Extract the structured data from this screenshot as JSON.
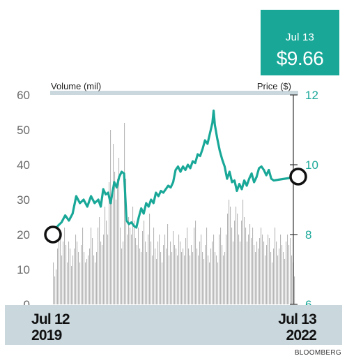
{
  "callout": {
    "date": "Jul 13",
    "price": "$9.66"
  },
  "source": "BLOOMBERG",
  "chart_data": {
    "type": "bar+line",
    "left_axis_label": "Volume (mil)",
    "right_axis_label": "Price ($)",
    "left_ticks": [
      "60",
      "50",
      "40",
      "30",
      "20",
      "10",
      "0"
    ],
    "right_ticks": [
      "12",
      "10",
      "8",
      "6"
    ],
    "ylim_volume": [
      0,
      60
    ],
    "ylim_price": [
      6,
      12
    ],
    "start_label": [
      "Jul 12",
      "2019"
    ],
    "end_label": [
      "Jul 13",
      "2022"
    ],
    "start_price": 8.0,
    "end_price": 9.66,
    "colors": {
      "price_line": "#19a898",
      "volume_bars": "#b6b6b6",
      "footer": "#cad8de",
      "callout": "#19a898"
    },
    "volume": [
      12,
      8,
      10,
      16,
      18,
      20,
      14,
      18,
      22,
      17,
      12,
      18,
      16,
      11,
      14,
      16,
      20,
      18,
      15,
      12,
      17,
      22,
      15,
      12,
      13,
      14,
      16,
      22,
      19,
      14,
      12,
      15,
      22,
      25,
      18,
      17,
      20,
      28,
      24,
      20,
      35,
      50,
      32,
      46,
      38,
      30,
      36,
      42,
      22,
      16,
      18,
      52,
      36,
      20,
      25,
      22,
      20,
      28,
      24,
      19,
      17,
      22,
      16,
      15,
      21,
      24,
      18,
      15,
      20,
      26,
      18,
      14,
      22,
      16,
      13,
      18,
      20,
      15,
      12,
      17,
      20,
      16,
      23,
      14,
      18,
      15,
      21,
      17,
      16,
      14,
      20,
      18,
      15,
      16,
      14,
      19,
      22,
      16,
      14,
      17,
      15,
      22,
      24,
      16,
      14,
      18,
      20,
      15,
      13,
      17,
      22,
      14,
      12,
      16,
      18,
      20,
      15,
      14,
      12,
      20,
      22,
      17,
      14,
      15,
      20,
      26,
      30,
      28,
      22,
      18,
      24,
      28,
      26,
      20,
      18,
      24,
      30,
      25,
      22,
      18,
      20,
      23,
      19,
      22,
      17,
      15,
      18,
      16,
      19,
      22,
      20,
      18,
      14,
      17,
      20,
      19,
      15,
      12,
      16,
      22,
      18,
      14,
      16,
      20,
      17,
      15,
      13,
      18,
      20,
      17,
      19,
      14,
      12,
      8
    ],
    "price": [
      {
        "x": 0.0,
        "y": 8.0
      },
      {
        "x": 0.02,
        "y": 8.25
      },
      {
        "x": 0.035,
        "y": 8.35
      },
      {
        "x": 0.05,
        "y": 8.55
      },
      {
        "x": 0.065,
        "y": 8.4
      },
      {
        "x": 0.08,
        "y": 8.6
      },
      {
        "x": 0.095,
        "y": 9.1
      },
      {
        "x": 0.11,
        "y": 8.9
      },
      {
        "x": 0.125,
        "y": 9.0
      },
      {
        "x": 0.14,
        "y": 8.8
      },
      {
        "x": 0.155,
        "y": 9.1
      },
      {
        "x": 0.17,
        "y": 8.9
      },
      {
        "x": 0.185,
        "y": 9.0
      },
      {
        "x": 0.195,
        "y": 8.8
      },
      {
        "x": 0.205,
        "y": 9.3
      },
      {
        "x": 0.215,
        "y": 9.15
      },
      {
        "x": 0.225,
        "y": 9.2
      },
      {
        "x": 0.235,
        "y": 8.9
      },
      {
        "x": 0.25,
        "y": 9.5
      },
      {
        "x": 0.26,
        "y": 9.35
      },
      {
        "x": 0.27,
        "y": 9.65
      },
      {
        "x": 0.28,
        "y": 9.8
      },
      {
        "x": 0.29,
        "y": 9.75
      },
      {
        "x": 0.3,
        "y": 8.4
      },
      {
        "x": 0.31,
        "y": 8.3
      },
      {
        "x": 0.32,
        "y": 8.35
      },
      {
        "x": 0.33,
        "y": 8.25
      },
      {
        "x": 0.34,
        "y": 8.2
      },
      {
        "x": 0.35,
        "y": 8.5
      },
      {
        "x": 0.36,
        "y": 8.75
      },
      {
        "x": 0.37,
        "y": 8.6
      },
      {
        "x": 0.38,
        "y": 8.9
      },
      {
        "x": 0.39,
        "y": 8.8
      },
      {
        "x": 0.4,
        "y": 9.0
      },
      {
        "x": 0.41,
        "y": 8.9
      },
      {
        "x": 0.42,
        "y": 9.2
      },
      {
        "x": 0.43,
        "y": 9.1
      },
      {
        "x": 0.44,
        "y": 9.25
      },
      {
        "x": 0.45,
        "y": 9.2
      },
      {
        "x": 0.46,
        "y": 9.3
      },
      {
        "x": 0.47,
        "y": 9.4
      },
      {
        "x": 0.48,
        "y": 9.35
      },
      {
        "x": 0.49,
        "y": 9.5
      },
      {
        "x": 0.5,
        "y": 9.85
      },
      {
        "x": 0.51,
        "y": 9.95
      },
      {
        "x": 0.52,
        "y": 9.8
      },
      {
        "x": 0.53,
        "y": 9.95
      },
      {
        "x": 0.54,
        "y": 9.85
      },
      {
        "x": 0.55,
        "y": 10.0
      },
      {
        "x": 0.56,
        "y": 9.9
      },
      {
        "x": 0.57,
        "y": 10.1
      },
      {
        "x": 0.58,
        "y": 10.05
      },
      {
        "x": 0.59,
        "y": 10.3
      },
      {
        "x": 0.6,
        "y": 10.25
      },
      {
        "x": 0.61,
        "y": 10.45
      },
      {
        "x": 0.62,
        "y": 10.7
      },
      {
        "x": 0.63,
        "y": 10.6
      },
      {
        "x": 0.64,
        "y": 10.9
      },
      {
        "x": 0.65,
        "y": 11.2
      },
      {
        "x": 0.655,
        "y": 11.55
      },
      {
        "x": 0.66,
        "y": 11.15
      },
      {
        "x": 0.67,
        "y": 10.75
      },
      {
        "x": 0.68,
        "y": 10.4
      },
      {
        "x": 0.69,
        "y": 10.15
      },
      {
        "x": 0.7,
        "y": 9.95
      },
      {
        "x": 0.71,
        "y": 9.6
      },
      {
        "x": 0.72,
        "y": 9.8
      },
      {
        "x": 0.73,
        "y": 9.5
      },
      {
        "x": 0.74,
        "y": 9.55
      },
      {
        "x": 0.75,
        "y": 9.25
      },
      {
        "x": 0.76,
        "y": 9.45
      },
      {
        "x": 0.77,
        "y": 9.3
      },
      {
        "x": 0.78,
        "y": 9.55
      },
      {
        "x": 0.79,
        "y": 9.4
      },
      {
        "x": 0.8,
        "y": 9.6
      },
      {
        "x": 0.81,
        "y": 9.75
      },
      {
        "x": 0.82,
        "y": 9.5
      },
      {
        "x": 0.83,
        "y": 9.65
      },
      {
        "x": 0.84,
        "y": 9.9
      },
      {
        "x": 0.85,
        "y": 9.95
      },
      {
        "x": 0.86,
        "y": 9.85
      },
      {
        "x": 0.87,
        "y": 9.7
      },
      {
        "x": 0.88,
        "y": 9.85
      },
      {
        "x": 0.89,
        "y": 9.6
      },
      {
        "x": 0.9,
        "y": 9.55
      },
      {
        "x": 1.0,
        "y": 9.66
      }
    ]
  }
}
